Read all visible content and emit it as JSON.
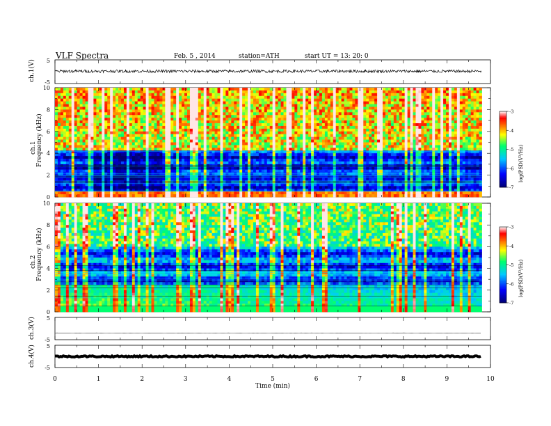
{
  "header": {
    "title": "VLF Spectra",
    "date": "Feb. 5 , 2014",
    "station": "station=ATH",
    "start": "start UT = 13: 20: 0"
  },
  "chart_data": [
    {
      "type": "line",
      "panel": "ch1",
      "ylabel": "ch.1(V)",
      "ylim": [
        -5,
        5
      ],
      "yticks": [
        "5",
        "-5"
      ],
      "description_values": {
        "baseline": 0.2,
        "noise_amplitude": 0.6
      }
    },
    {
      "type": "heatmap",
      "panel": "ch1-spectrogram",
      "ylabel_top": "ch.1",
      "ylabel": "Frequency (kHz)",
      "ylim": [
        0,
        10
      ],
      "yticks": [
        "0",
        "2",
        "4",
        "6",
        "8",
        "10"
      ],
      "colorbar": {
        "label": "log(PSD(V²/Hz)",
        "ticks": [
          "-3",
          "-4",
          "-5",
          "-6",
          "-7"
        ],
        "range": [
          -7,
          -3
        ],
        "colors": [
          "#000066",
          "#0000ff",
          "#00ccff",
          "#00ff66",
          "#ffff00",
          "#ff6600",
          "#ff0000",
          "#ffffff"
        ]
      }
    },
    {
      "type": "heatmap",
      "panel": "ch2-spectrogram",
      "ylabel_top": "ch.2",
      "ylabel": "Frequency (kHz)",
      "ylim": [
        0,
        10
      ],
      "yticks": [
        "0",
        "2",
        "4",
        "6",
        "8",
        "10"
      ],
      "colorbar": {
        "label": "log(PSD(V²/Hz)",
        "ticks": [
          "-3",
          "-4",
          "-5",
          "-6",
          "-7"
        ],
        "range": [
          -7,
          -3
        ],
        "colors": [
          "#000066",
          "#0000ff",
          "#00ccff",
          "#00ff66",
          "#ffff00",
          "#ff6600",
          "#ff0000",
          "#ffffff"
        ]
      }
    },
    {
      "type": "line",
      "panel": "ch3",
      "ylabel": "ch.3(V)",
      "ylim": [
        -5,
        5
      ],
      "yticks": [
        "5",
        "-5"
      ],
      "description_values": {
        "baseline": -2,
        "noise_amplitude": 0.05
      }
    },
    {
      "type": "line",
      "panel": "ch4",
      "ylabel": "ch.4(V)",
      "ylim": [
        -5,
        5
      ],
      "yticks": [
        "5",
        "-5"
      ],
      "description_values": {
        "baseline": 0,
        "noise_amplitude": 0.3
      }
    }
  ],
  "xaxis": {
    "label": "Time (min)",
    "range": [
      0,
      10
    ],
    "data_end": 9.8,
    "ticks": [
      "0",
      "1",
      "2",
      "3",
      "4",
      "5",
      "6",
      "7",
      "8",
      "9",
      "10"
    ]
  }
}
